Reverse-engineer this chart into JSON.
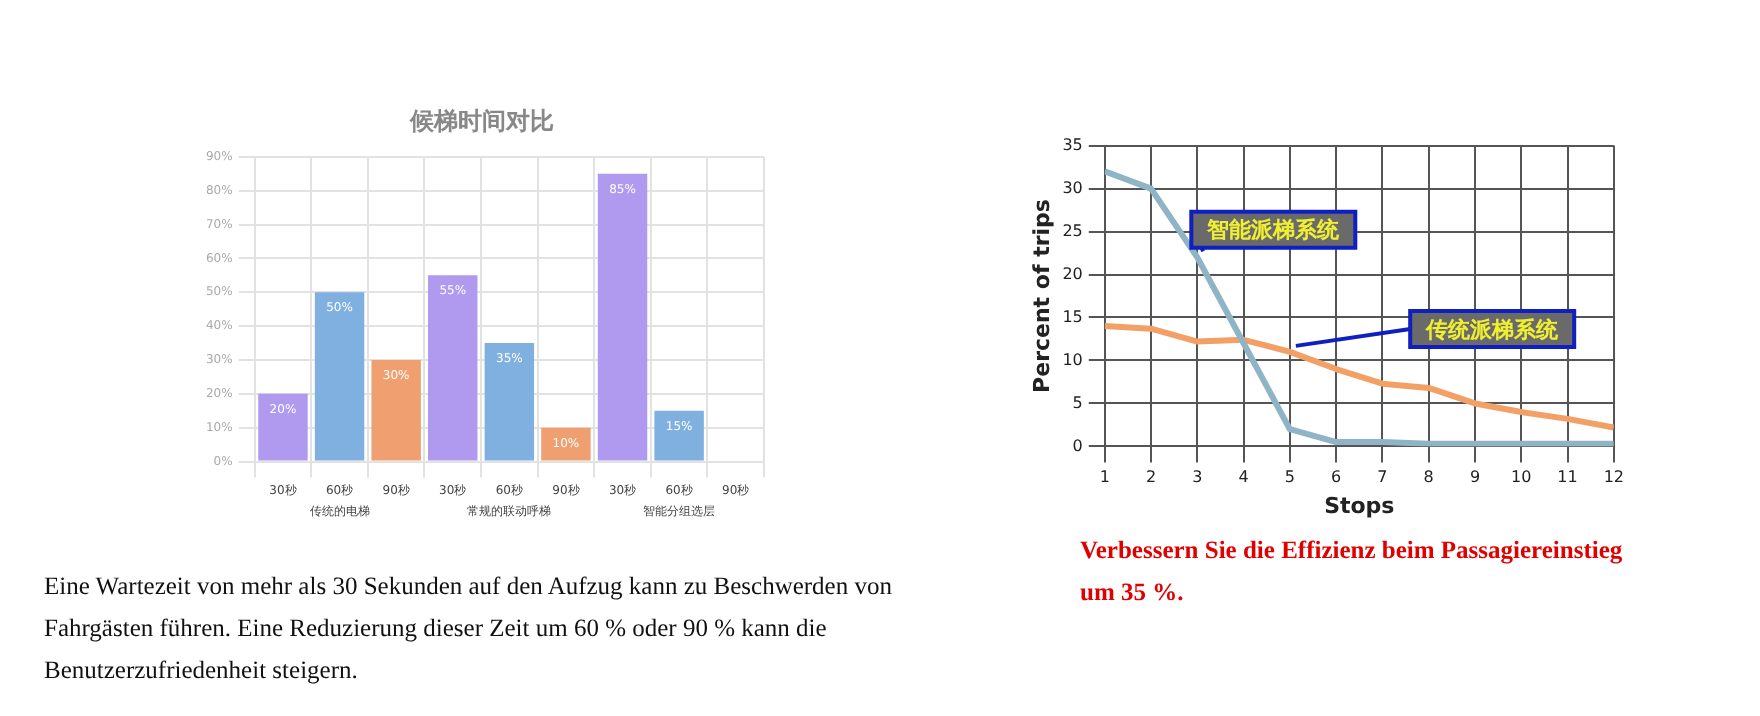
{
  "chart_data": [
    {
      "type": "bar",
      "title": "候梯时间对比",
      "categories": [
        "30秒",
        "60秒",
        "90秒",
        "30秒",
        "60秒",
        "90秒",
        "30秒",
        "60秒",
        "90秒"
      ],
      "values": [
        20,
        50,
        30,
        55,
        35,
        10,
        85,
        15,
        null
      ],
      "colors": [
        "#b09af0",
        "#7fb0e0",
        "#f0a070",
        "#b09af0",
        "#7fb0e0",
        "#f0a070",
        "#b09af0",
        "#7fb0e0",
        "#f0a070"
      ],
      "value_labels": [
        "20%",
        "50%",
        "30%",
        "55%",
        "35%",
        "10%",
        "85%",
        "15%",
        null
      ],
      "ylim": [
        0,
        90
      ],
      "yticks": [
        {
          "value": 0,
          "label": "0%"
        },
        {
          "value": 10,
          "label": "10%"
        },
        {
          "value": 20,
          "label": "20%"
        },
        {
          "value": 30,
          "label": "30%"
        },
        {
          "value": 40,
          "label": "40%"
        },
        {
          "value": 50,
          "label": "50%"
        },
        {
          "value": 60,
          "label": "60%"
        },
        {
          "value": 70,
          "label": "70%"
        },
        {
          "value": 80,
          "label": "80%"
        },
        {
          "value": 90,
          "label": "90%"
        }
      ],
      "grid": true,
      "legend": false,
      "annotations": [
        "传统的电梯",
        "常规的联动呼梯",
        "智能分组选层",
        "Eine Wartezeit von mehr als 30 Sekunden auf den Aufzug kann zu Beschwerden von Fahrgästen führen. Eine Reduzierung dieser Zeit um 60 % oder 90 % kann die Benutzerzufriedenheit steigern."
      ]
    },
    {
      "type": "line",
      "xlabel": "Stops",
      "ylabel": "Percent of trips",
      "x": [
        1,
        2,
        3,
        4,
        5,
        6,
        7,
        8,
        9,
        10,
        11,
        12
      ],
      "series": [
        {
          "name": "智能派梯系统",
          "color": "#8fb4c6",
          "values": [
            32,
            30,
            22,
            12,
            2,
            0.5,
            0.5,
            0.3,
            0.3,
            0.3,
            0.3,
            0.3
          ]
        },
        {
          "name": "传统派梯系统",
          "color": "#f2a065",
          "values": [
            14,
            13.7,
            12.2,
            12.4,
            11,
            9,
            7.3,
            6.8,
            5,
            4,
            3.2,
            2.2
          ]
        }
      ],
      "xlim": [
        1,
        12
      ],
      "xticks": [
        1,
        2,
        3,
        4,
        5,
        6,
        7,
        8,
        9,
        10,
        11,
        12
      ],
      "ylim": [
        0,
        35
      ],
      "yticks": [
        0,
        5,
        10,
        15,
        20,
        25,
        30,
        35
      ],
      "grid": true,
      "legend": false,
      "marker": "none",
      "line_style": "solid",
      "annotations": [
        "Verbessern Sie die Effizienz beim Passagiereinstieg um 35 %."
      ]
    }
  ]
}
